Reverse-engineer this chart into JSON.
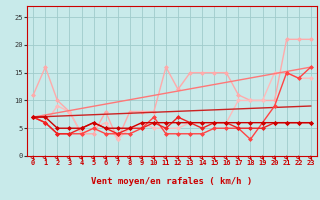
{
  "bg_color": "#c8eaea",
  "grid_color": "#a0cccc",
  "x_label": "Vent moyen/en rafales ( km/h )",
  "x_ticks": [
    0,
    1,
    2,
    3,
    4,
    5,
    6,
    7,
    8,
    9,
    10,
    11,
    12,
    13,
    14,
    15,
    16,
    17,
    18,
    19,
    20,
    21,
    22,
    23
  ],
  "ylim": [
    0,
    27
  ],
  "yticks": [
    0,
    5,
    10,
    15,
    20,
    25
  ],
  "lines": [
    {
      "color": "#ffaaaa",
      "linewidth": 1.0,
      "marker": "D",
      "markersize": 2.0,
      "x": [
        0,
        1,
        2,
        3,
        4,
        5,
        6,
        7,
        8,
        9,
        10,
        11,
        12,
        13,
        14,
        15,
        16,
        17,
        18,
        19,
        20,
        21,
        22,
        23
      ],
      "y": [
        11,
        16,
        10,
        8,
        4,
        4,
        8,
        3,
        8,
        8,
        8,
        16,
        12,
        15,
        15,
        15,
        15,
        11,
        10,
        10,
        10,
        21,
        21,
        21
      ]
    },
    {
      "color": "#ffbbbb",
      "linewidth": 1.0,
      "marker": "D",
      "markersize": 2.0,
      "x": [
        0,
        1,
        2,
        3,
        4,
        5,
        6,
        7,
        8,
        9,
        10,
        11,
        12,
        13,
        14,
        15,
        16,
        17,
        18,
        19,
        20,
        21,
        22,
        23
      ],
      "y": [
        7,
        6,
        9,
        8,
        4,
        5,
        6,
        3,
        5,
        6,
        5,
        5,
        5,
        6,
        6,
        6,
        6,
        10,
        10,
        10,
        15,
        15,
        14,
        14
      ]
    },
    {
      "color": "#ff7777",
      "linewidth": 1.0,
      "marker": null,
      "x": [
        0,
        23
      ],
      "y": [
        7,
        16
      ]
    },
    {
      "color": "#cc2222",
      "linewidth": 1.0,
      "marker": null,
      "x": [
        0,
        23
      ],
      "y": [
        7,
        9
      ]
    },
    {
      "color": "#ff4444",
      "linewidth": 1.0,
      "marker": "D",
      "markersize": 2.0,
      "x": [
        0,
        1,
        2,
        3,
        4,
        5,
        6,
        7,
        8,
        9,
        10,
        11,
        12,
        13,
        14,
        15,
        16,
        17,
        18,
        19,
        20,
        21,
        22,
        23
      ],
      "y": [
        7,
        6,
        4,
        4,
        4,
        5,
        4,
        4,
        4,
        5,
        7,
        4,
        4,
        4,
        4,
        5,
        5,
        5,
        3,
        6,
        9,
        15,
        14,
        16
      ]
    },
    {
      "color": "#ee2222",
      "linewidth": 1.0,
      "marker": "D",
      "markersize": 2.0,
      "x": [
        0,
        1,
        2,
        3,
        4,
        5,
        6,
        7,
        8,
        9,
        10,
        11,
        12,
        13,
        14,
        15,
        16,
        17,
        18,
        19,
        20,
        21,
        22,
        23
      ],
      "y": [
        7,
        6,
        4,
        4,
        5,
        6,
        5,
        4,
        5,
        5,
        6,
        5,
        7,
        6,
        5,
        6,
        6,
        5,
        5,
        5,
        6,
        6,
        6,
        6
      ]
    },
    {
      "color": "#cc0000",
      "linewidth": 1.0,
      "marker": "D",
      "markersize": 2.0,
      "x": [
        0,
        1,
        2,
        3,
        4,
        5,
        6,
        7,
        8,
        9,
        10,
        11,
        12,
        13,
        14,
        15,
        16,
        17,
        18,
        19,
        20,
        21,
        22,
        23
      ],
      "y": [
        7,
        7,
        5,
        5,
        5,
        6,
        5,
        5,
        5,
        6,
        6,
        6,
        6,
        6,
        6,
        6,
        6,
        6,
        6,
        6,
        6,
        6,
        6,
        6
      ]
    }
  ],
  "arrow_color": "#cc0000",
  "axis_fontsize": 6.5,
  "tick_fontsize": 5.0
}
